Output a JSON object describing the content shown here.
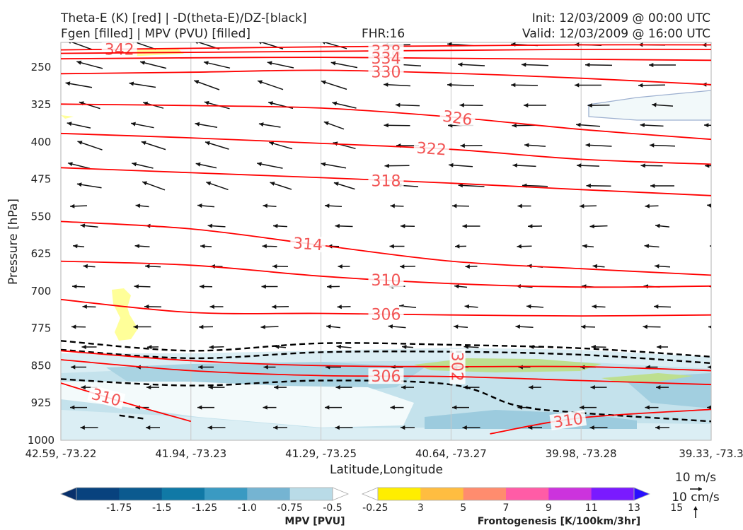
{
  "header": {
    "left_line1": "Theta-E (K) [red] | -D(theta-E)/DZ-[black]",
    "left_line2": "Fgen [filled] | MPV (PVU) [filled]",
    "fhr": "FHR:16",
    "init": "Init: 12/03/2009 @ 00:00 UTC",
    "valid": "Valid: 12/03/2009 @ 16:00 UTC"
  },
  "chart_data": {
    "type": "cross-section",
    "xlabel": "Latitude,Longitude",
    "ylabel": "Pressure [hPa]",
    "x_ticks": [
      "42.59, -73.22",
      "41.94, -73.23",
      "41.29, -73.25",
      "40.64, -73.27",
      "39.98, -73.28",
      "39.33, -73.3"
    ],
    "y_ticks": [
      250,
      325,
      400,
      475,
      550,
      625,
      700,
      775,
      850,
      925,
      1000
    ],
    "ylim": [
      1000,
      200
    ],
    "grid": true,
    "theta_e_contours": [
      {
        "label": "342",
        "points": [
          [
            0,
            215
          ],
          [
            1,
            212
          ],
          [
            2,
            209
          ],
          [
            3,
            207
          ],
          [
            4,
            205
          ],
          [
            5,
            205
          ]
        ]
      },
      {
        "label": "338",
        "points": [
          [
            0,
            222
          ],
          [
            1,
            220
          ],
          [
            2,
            218
          ],
          [
            3,
            216
          ],
          [
            4,
            214
          ],
          [
            5,
            214
          ]
        ]
      },
      {
        "label": "334",
        "points": [
          [
            0,
            233
          ],
          [
            1,
            231
          ],
          [
            2,
            230
          ],
          [
            3,
            232
          ],
          [
            4,
            234
          ],
          [
            5,
            236
          ]
        ]
      },
      {
        "label": "330",
        "points": [
          [
            0,
            263
          ],
          [
            1,
            260
          ],
          [
            2,
            256
          ],
          [
            3,
            262
          ],
          [
            4,
            272
          ],
          [
            5,
            285
          ]
        ]
      },
      {
        "label": "326",
        "points": [
          [
            0,
            324
          ],
          [
            1,
            327
          ],
          [
            2,
            332
          ],
          [
            3,
            350
          ],
          [
            4,
            375
          ],
          [
            5,
            395
          ]
        ]
      },
      {
        "label": "322",
        "points": [
          [
            0,
            383
          ],
          [
            1,
            392
          ],
          [
            2,
            403
          ],
          [
            3,
            415
          ],
          [
            4,
            435
          ],
          [
            5,
            445
          ]
        ]
      },
      {
        "label": "318",
        "points": [
          [
            0,
            452
          ],
          [
            1,
            462
          ],
          [
            2,
            472
          ],
          [
            3,
            483
          ],
          [
            4,
            496
          ],
          [
            5,
            508
          ]
        ]
      },
      {
        "label": "314",
        "points": [
          [
            0,
            560
          ],
          [
            1,
            575
          ],
          [
            2,
            608
          ],
          [
            3,
            640
          ],
          [
            4,
            655
          ],
          [
            5,
            668
          ]
        ]
      },
      {
        "label": "310",
        "points": [
          [
            0,
            640
          ],
          [
            1,
            648
          ],
          [
            2,
            670
          ],
          [
            3,
            685
          ],
          [
            4,
            692
          ],
          [
            5,
            690
          ]
        ]
      },
      {
        "label": "306",
        "points": [
          [
            0,
            717
          ],
          [
            1,
            743
          ],
          [
            2,
            745
          ],
          [
            3,
            748
          ],
          [
            4,
            750
          ],
          [
            5,
            748
          ]
        ]
      },
      {
        "label": "302",
        "points": [
          [
            0,
            820
          ],
          [
            1,
            840
          ],
          [
            2,
            850
          ],
          [
            3,
            852
          ],
          [
            4,
            852
          ],
          [
            5,
            860
          ]
        ]
      },
      {
        "label": "306",
        "points": [
          [
            0,
            838
          ],
          [
            1,
            860
          ],
          [
            2,
            870
          ],
          [
            3,
            872
          ],
          [
            4,
            880
          ],
          [
            5,
            888
          ]
        ]
      },
      {
        "label": "310",
        "points": [
          [
            0,
            885
          ],
          [
            0.5,
            925
          ],
          [
            1,
            962
          ]
        ]
      },
      {
        "label": "310",
        "points": [
          [
            3.3,
            987
          ],
          [
            4,
            955
          ],
          [
            5,
            938
          ]
        ]
      }
    ],
    "dthetae_dz_dashed": [
      {
        "points": [
          [
            0,
            800
          ],
          [
            1,
            820
          ],
          [
            2,
            805
          ],
          [
            3,
            808
          ],
          [
            4,
            815
          ],
          [
            5,
            832
          ]
        ]
      },
      {
        "points": [
          [
            0,
            818
          ],
          [
            1,
            835
          ],
          [
            2,
            823
          ],
          [
            3,
            822
          ],
          [
            4,
            828
          ],
          [
            5,
            845
          ]
        ]
      },
      {
        "points": [
          [
            0,
            877
          ],
          [
            1,
            890
          ],
          [
            2,
            880
          ],
          [
            3,
            888
          ],
          [
            3.5,
            930
          ],
          [
            4,
            945
          ],
          [
            5,
            962
          ]
        ]
      },
      {
        "points": [
          [
            0.45,
            950
          ],
          [
            0.65,
            957
          ]
        ]
      }
    ],
    "vector_reference": {
      "label_h": "10 m/s",
      "label_v": "10 cm/s"
    }
  },
  "colorbars": {
    "mpv": {
      "title": "MPV [PVU]",
      "ticks": [
        "-1.75",
        "-1.5",
        "-1.25",
        "-1.0",
        "-0.75",
        "-0.5",
        "-0.25"
      ],
      "colors": [
        "#08306b",
        "#08427e",
        "#0b5a8f",
        "#1079a6",
        "#3a9ac2",
        "#75b4d2",
        "#b9dbe7",
        "#ffffff"
      ]
    },
    "fgen": {
      "title": "Frontogenesis [K/100km/3hr]",
      "ticks": [
        "3",
        "5",
        "7",
        "9",
        "11",
        "13",
        "15"
      ],
      "colors": [
        "#ffffff",
        "#ffee00",
        "#ffbd40",
        "#ff8c6e",
        "#ff5ca6",
        "#cc33dd",
        "#7a1aff",
        "#2a10ff"
      ]
    }
  }
}
